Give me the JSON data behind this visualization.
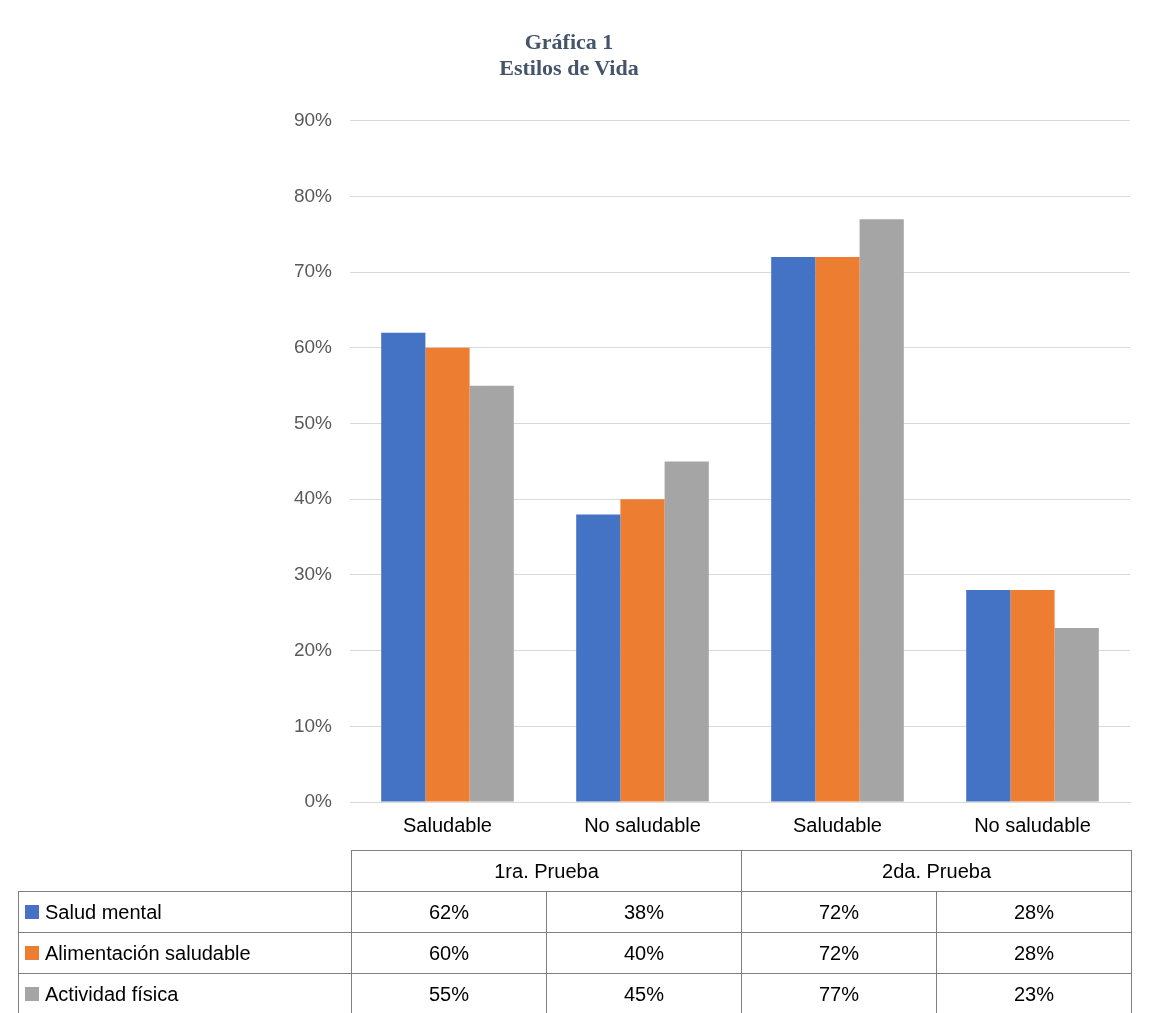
{
  "chart_data": {
    "type": "bar",
    "title": "Gráfica 1\nEstilos de Vida",
    "categories": [
      "Saludable",
      "No saludable",
      "Saludable",
      "No saludable"
    ],
    "annotations": [
      "1ra. Prueba",
      "2da. Prueba"
    ],
    "series": [
      {
        "name": "Salud mental",
        "color": "#4472c4",
        "values": [
          62,
          38,
          72,
          28
        ],
        "value_labels": [
          "62%",
          "38%",
          "72%",
          "28%"
        ]
      },
      {
        "name": "Alimentación saludable",
        "color": "#ed7d31",
        "values": [
          60,
          40,
          72,
          28
        ],
        "value_labels": [
          "60%",
          "40%",
          "72%",
          "28%"
        ]
      },
      {
        "name": "Actividad física",
        "color": "#a5a5a5",
        "values": [
          55,
          45,
          77,
          23
        ],
        "value_labels": [
          "55%",
          "45%",
          "77%",
          "23%"
        ]
      }
    ],
    "ylim": [
      0,
      90
    ],
    "yticks": [
      {
        "value": 0,
        "label": "0%"
      },
      {
        "value": 10,
        "label": "10%"
      },
      {
        "value": 20,
        "label": "20%"
      },
      {
        "value": 30,
        "label": "30%"
      },
      {
        "value": 40,
        "label": "40%"
      },
      {
        "value": 50,
        "label": "50%"
      },
      {
        "value": 60,
        "label": "60%"
      },
      {
        "value": 70,
        "label": "70%"
      },
      {
        "value": 80,
        "label": "80%"
      },
      {
        "value": 90,
        "label": "90%"
      }
    ],
    "grid": "y",
    "legend": "bottom"
  }
}
